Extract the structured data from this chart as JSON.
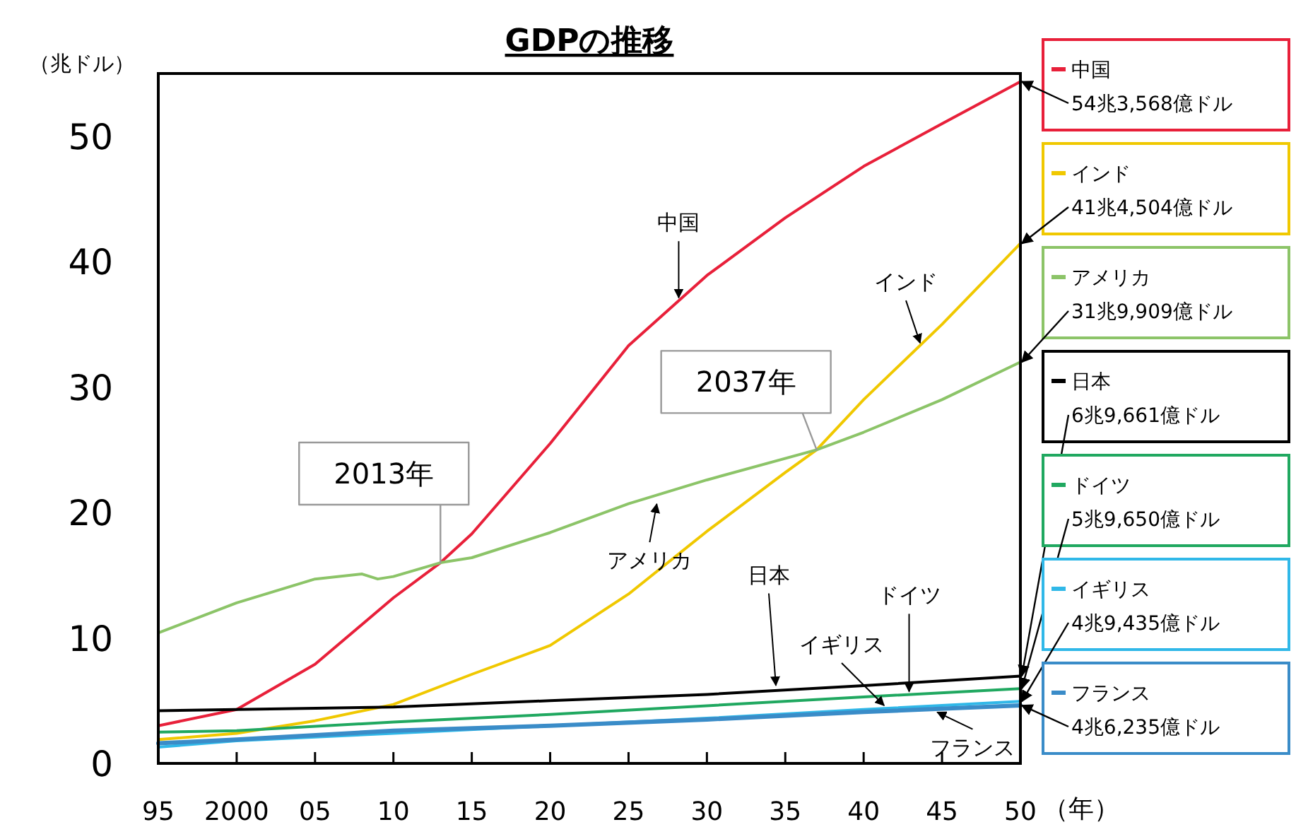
{
  "chart_data": {
    "type": "line",
    "title": "GDPの推移",
    "xlabel": "（年）",
    "ylabel": "（兆ドル）",
    "xlim": [
      1995,
      2050
    ],
    "ylim": [
      0,
      55
    ],
    "xticks": [
      {
        "value": 1995,
        "label": "95"
      },
      2000,
      {
        "value": 2005,
        "label": "05"
      },
      {
        "value": 2010,
        "label": "10"
      },
      {
        "value": 2015,
        "label": "15"
      },
      {
        "value": 2020,
        "label": "20"
      },
      {
        "value": 2025,
        "label": "25"
      },
      {
        "value": 2030,
        "label": "30"
      },
      {
        "value": 2035,
        "label": "35"
      },
      {
        "value": 2040,
        "label": "40"
      },
      {
        "value": 2045,
        "label": "45"
      },
      {
        "value": 2050,
        "label": "50"
      }
    ],
    "yticks": [
      0,
      10,
      20,
      30,
      40,
      50
    ],
    "grid": false,
    "legend": "right",
    "marker": "none",
    "line_style": "solid",
    "series": [
      {
        "name": "中国",
        "color": "#e8203a",
        "x": [
          1995,
          2000,
          2005,
          2010,
          2013,
          2015,
          2020,
          2025,
          2030,
          2035,
          2040,
          2045,
          2050
        ],
        "values": [
          3.0,
          4.3,
          7.9,
          13.2,
          16,
          18.3,
          25.5,
          33.3,
          38.9,
          43.5,
          47.6,
          51,
          54.3568
        ]
      },
      {
        "name": "インド",
        "color": "#f0c800",
        "x": [
          1995,
          2000,
          2005,
          2010,
          2015,
          2020,
          2025,
          2030,
          2035,
          2037,
          2040,
          2045,
          2050
        ],
        "values": [
          1.9,
          2.4,
          3.4,
          4.7,
          7.1,
          9.4,
          13.5,
          18.5,
          23.2,
          25,
          29,
          35,
          41.4504
        ]
      },
      {
        "name": "アメリカ",
        "color": "#8cc468",
        "x": [
          1995,
          2000,
          2005,
          2008,
          2009,
          2010,
          2013,
          2015,
          2020,
          2025,
          2030,
          2037,
          2040,
          2045,
          2050
        ],
        "values": [
          10.4,
          12.8,
          14.7,
          15.1,
          14.7,
          14.9,
          16,
          16.4,
          18.4,
          20.7,
          22.6,
          25,
          26.4,
          29,
          31.9909
        ]
      },
      {
        "name": "日本",
        "color": "#000000",
        "x": [
          1995,
          2000,
          2010,
          2020,
          2030,
          2040,
          2050
        ],
        "values": [
          4.2,
          4.3,
          4.5,
          5.0,
          5.5,
          6.2,
          6.9661
        ]
      },
      {
        "name": "ドイツ",
        "color": "#20a860",
        "x": [
          1995,
          2000,
          2010,
          2020,
          2030,
          2040,
          2050
        ],
        "values": [
          2.5,
          2.6,
          3.3,
          3.9,
          4.6,
          5.3,
          5.965
        ]
      },
      {
        "name": "イギリス",
        "color": "#30b8e8",
        "x": [
          1995,
          2000,
          2010,
          2020,
          2030,
          2040,
          2050
        ],
        "values": [
          1.3,
          1.8,
          2.4,
          3.0,
          3.6,
          4.3,
          4.9435
        ]
      },
      {
        "name": "フランス",
        "color": "#3a8cc8",
        "x": [
          1995,
          2000,
          2010,
          2020,
          2030,
          2040,
          2050
        ],
        "values": [
          1.6,
          1.9,
          2.6,
          3.0,
          3.5,
          4.1,
          4.6235
        ]
      }
    ],
    "annotations": [
      {
        "text": "54兆3,568億ドル",
        "x": 2050,
        "y": 54.3568
      },
      {
        "text": "41兆4,504億ドル",
        "x": 2050,
        "y": 41.4504
      },
      {
        "text": "31兆9,909億ドル",
        "x": 2050,
        "y": 31.9909
      },
      {
        "text": "6兆9,661億ドル",
        "x": 2050,
        "y": 6.9661
      },
      {
        "text": "5兆9,650億ドル",
        "x": 2050,
        "y": 5.965
      },
      {
        "text": "4兆9,435億ドル",
        "x": 2050,
        "y": 4.9435
      },
      {
        "text": "4兆6,235億ドル",
        "x": 2050,
        "y": 4.6235
      },
      {
        "text": "2013年",
        "x": 2013,
        "y": 16
      },
      {
        "text": "2037年",
        "x": 2037,
        "y": 25
      },
      {
        "text": "中国",
        "x": 2028.2,
        "y": 36.9
      },
      {
        "text": "インド",
        "x": 2043.6,
        "y": 33.3
      },
      {
        "text": "アメリカ",
        "x": 2026.8,
        "y": 20.9
      },
      {
        "text": "日本",
        "x": 2034.4,
        "y": 6.0
      },
      {
        "text": "イギリス",
        "x": 2041.3,
        "y": 4.4
      },
      {
        "text": "ドイツ",
        "x": 2042.9,
        "y": 5.5
      },
      {
        "text": "フランス",
        "x": 2044.7,
        "y": 4.3
      }
    ]
  }
}
